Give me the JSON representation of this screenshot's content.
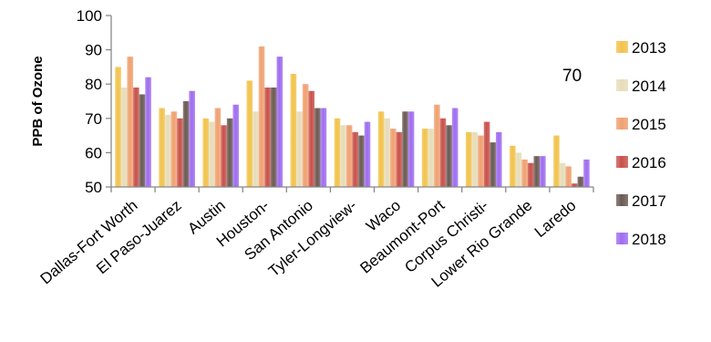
{
  "chart_data": {
    "type": "bar",
    "ylabel": "PPB of Ozone",
    "xlabel": "",
    "ylim": [
      50,
      100
    ],
    "yticks": [
      50,
      60,
      70,
      80,
      90,
      100
    ],
    "grid": false,
    "legend": "right",
    "annotation": "70",
    "categories": [
      "Dallas-Fort Worth",
      "El Paso-Juarez",
      "Austin",
      "Houston-",
      "San Antonio",
      "Tyler-Longview-",
      "Waco",
      "Beaumont-Port",
      "Corpus Christi-",
      "Lower Rio Grande",
      "Laredo"
    ],
    "series": [
      {
        "name": "2013",
        "color": "#f2c24a",
        "values": [
          85,
          73,
          70,
          81,
          83,
          70,
          72,
          67,
          66,
          62,
          65
        ]
      },
      {
        "name": "2014",
        "color": "#e6dcb8",
        "values": [
          79,
          71,
          69,
          72,
          72,
          68,
          70,
          67,
          66,
          60,
          57
        ]
      },
      {
        "name": "2015",
        "color": "#f0a070",
        "values": [
          88,
          72,
          73,
          91,
          80,
          68,
          67,
          74,
          65,
          58,
          56
        ]
      },
      {
        "name": "2016",
        "color": "#c8504a",
        "values": [
          79,
          70,
          68,
          79,
          78,
          66,
          66,
          70,
          69,
          57,
          51
        ]
      },
      {
        "name": "2017",
        "color": "#6a5a52",
        "values": [
          77,
          75,
          70,
          79,
          73,
          65,
          72,
          68,
          63,
          59,
          53
        ]
      },
      {
        "name": "2018",
        "color": "#9e6cf0",
        "values": [
          82,
          78,
          74,
          88,
          73,
          69,
          72,
          73,
          66,
          59,
          58
        ]
      }
    ]
  }
}
